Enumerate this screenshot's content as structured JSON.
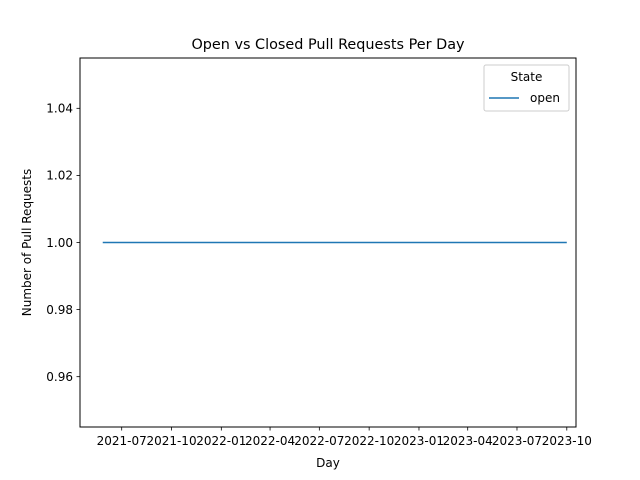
{
  "chart_data": {
    "type": "line",
    "title": "Open vs Closed Pull Requests Per Day",
    "xlabel": "Day",
    "ylabel": "Number of Pull Requests",
    "x_axis": "date",
    "xlim": [
      "2021-04-15",
      "2023-10-18"
    ],
    "ylim": [
      0.945,
      1.055
    ],
    "x_ticks": [
      "2021-07",
      "2021-10",
      "2022-01",
      "2022-04",
      "2022-07",
      "2022-10",
      "2023-01",
      "2023-04",
      "2023-07",
      "2023-10"
    ],
    "y_ticks": [
      "0.96",
      "0.98",
      "1.00",
      "1.02",
      "1.04"
    ],
    "grid": false,
    "legend": {
      "title": "State",
      "placement": "top-right",
      "entries": [
        "open"
      ]
    },
    "series": [
      {
        "name": "open",
        "color": "#1f77b4",
        "x": [
          "2021-05-27",
          "2023-10-01"
        ],
        "y": [
          1.0,
          1.0
        ]
      }
    ]
  }
}
